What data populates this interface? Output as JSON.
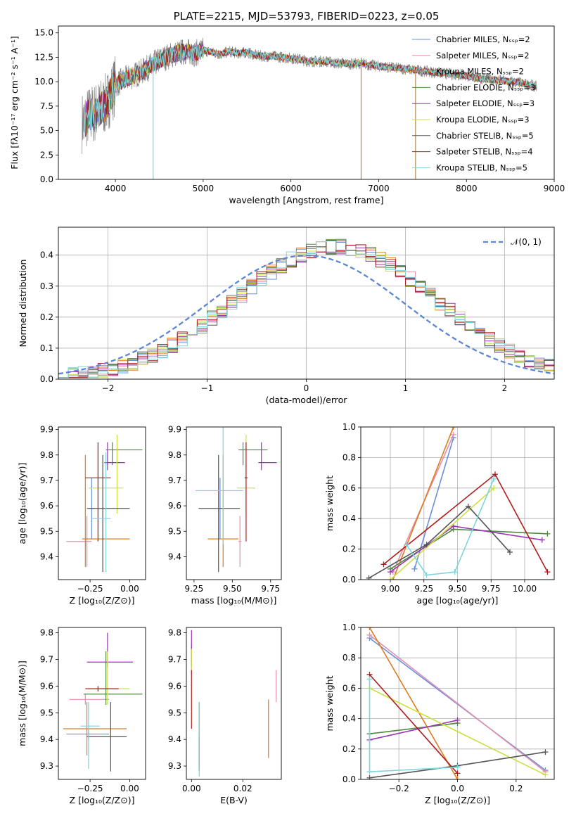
{
  "colors": [
    "#6a8fd8",
    "#e48fb0",
    "#e07b1f",
    "#4e8a3e",
    "#9b35b5",
    "#cde040",
    "#555555",
    "#b01b1b",
    "#7dd6dc"
  ],
  "chart_data": [
    {
      "id": "spectrum",
      "type": "line",
      "title": "PLATE=2215, MJD=53793, FIBERID=0223, z=0.05",
      "xlabel": "wavelength [Angstrom, rest frame]",
      "ylabel": "Flux [fλ10⁻¹⁷ erg cm⁻² s⁻¹ A⁻¹]",
      "xlim": [
        3350,
        9000
      ],
      "ylim": [
        0,
        15.7
      ],
      "xticks": [
        4000,
        5000,
        6000,
        7000,
        8000,
        9000
      ],
      "yticks": [
        0.0,
        2.5,
        5.0,
        7.5,
        10.0,
        12.5,
        15.0
      ],
      "grid": false,
      "legend_position": "right",
      "legend": [
        "Chabrier MILES, Nₛₛₚ=2",
        "Salpeter MILES, Nₛₛₚ=2",
        "Kroupa MILES, Nₛₛₚ=2",
        "Chabrier ELODIE, Nₛₛₚ=3",
        "Salpeter ELODIE, Nₛₛₚ=3",
        "Kroupa ELODIE, Nₛₛₚ=3",
        "Chabrier STELIB, Nₛₛₚ=5",
        "Salpeter STELIB, Nₛₛₚ=4",
        "Kroupa STELIB, Nₛₛₚ=5"
      ],
      "data_x": [
        3620,
        3700,
        3800,
        3900,
        4000,
        4100,
        4200,
        4300,
        4400,
        4500,
        4600,
        4700,
        4800,
        4900,
        5000,
        5100,
        5200,
        5300,
        5400,
        5500,
        5600,
        5700,
        5800,
        5900,
        6000,
        6100,
        6200,
        6300,
        6400,
        6500,
        6600,
        6700,
        6800,
        6900,
        7000,
        7100,
        7200,
        7300,
        7400,
        7500,
        7600,
        7700,
        7800,
        7900,
        8000,
        8100,
        8200,
        8300,
        8400,
        8500,
        8600,
        8700,
        8800
      ],
      "data_y": [
        5.8,
        6.5,
        7.0,
        7.8,
        9.7,
        10.2,
        10.6,
        11.0,
        11.6,
        12.2,
        12.6,
        12.9,
        13.1,
        12.9,
        13.2,
        13.0,
        12.8,
        13.1,
        12.9,
        13.0,
        12.7,
        12.6,
        12.6,
        12.5,
        12.4,
        12.3,
        12.1,
        12.1,
        12.1,
        11.9,
        11.9,
        11.8,
        11.9,
        11.7,
        11.6,
        11.5,
        11.4,
        11.3,
        11.2,
        11.1,
        11.0,
        10.9,
        10.8,
        10.7,
        10.6,
        10.4,
        10.3,
        10.2,
        10.1,
        10.0,
        9.9,
        9.7,
        9.5
      ],
      "dips": [
        [
          4430,
          0
        ],
        [
          6800,
          0
        ],
        [
          7420,
          0
        ]
      ]
    },
    {
      "id": "residuals",
      "type": "area",
      "xlabel": "(data-model)/error",
      "ylabel": "Normed distribution",
      "xlim": [
        -2.5,
        2.5
      ],
      "ylim": [
        0,
        0.49
      ],
      "xticks": [
        -2,
        -1,
        0,
        1,
        2
      ],
      "yticks": [
        0.0,
        0.1,
        0.2,
        0.3,
        0.4
      ],
      "grid": true,
      "legend_position": "top-right",
      "reference_label": "𝒩(0, 1)",
      "bins": [
        -2.5,
        2.5,
        50
      ]
    },
    {
      "id": "age-vs-Z",
      "type": "scatter",
      "xlabel": "Z [log₁₀(Z/Z⊙)]",
      "ylabel": "age  [log₁₀(age/yr)]",
      "xlim": [
        -0.45,
        0.1
      ],
      "ylim": [
        9.31,
        9.91
      ],
      "xticks": [
        -0.25,
        0.0
      ],
      "yticks": [
        9.4,
        9.5,
        9.6,
        9.7,
        9.8,
        9.9
      ],
      "points": [
        {
          "x": -0.24,
          "xerr": [
            0.02,
            0.02
          ],
          "y": 9.59,
          "yerr": [
            0.12,
            0.12
          ]
        },
        {
          "x": -0.27,
          "xerr": [
            0.13,
            0.03
          ],
          "y": 9.46,
          "yerr": [
            0.1,
            0.1
          ]
        },
        {
          "x": -0.28,
          "xerr": [
            0.02,
            0.28
          ],
          "y": 9.47,
          "yerr": [
            0.11,
            0.33
          ]
        },
        {
          "x": -0.11,
          "xerr": [
            0.04,
            0.19
          ],
          "y": 9.82,
          "yerr": [
            0.06,
            0.03
          ]
        },
        {
          "x": -0.14,
          "xerr": [
            0.02,
            0.11
          ],
          "y": 9.77,
          "yerr": [
            0.03,
            0.08
          ]
        },
        {
          "x": -0.08,
          "xerr": [
            0.18,
            0.04
          ],
          "y": 9.67,
          "yerr": [
            0.1,
            0.21
          ]
        },
        {
          "x": -0.17,
          "xerr": [
            0.1,
            0.17
          ],
          "y": 9.59,
          "yerr": [
            0.25,
            0.21
          ]
        },
        {
          "x": -0.2,
          "xerr": [
            0.08,
            0.08
          ],
          "y": 9.71,
          "yerr": [
            0.25,
            0.14
          ]
        },
        {
          "x": -0.15,
          "xerr": [
            0.09,
            0.03
          ],
          "y": 9.55,
          "yerr": [
            0.21,
            0.26
          ]
        }
      ]
    },
    {
      "id": "age-vs-mass",
      "type": "scatter",
      "xlabel": "mass [log₁₀(M/M⊙)]",
      "ylabel": "",
      "xlim": [
        9.2,
        9.82
      ],
      "ylim": [
        9.31,
        9.91
      ],
      "xticks": [
        9.25,
        9.5,
        9.75
      ],
      "yticks": [
        9.4,
        9.5,
        9.6,
        9.7,
        9.8,
        9.9
      ],
      "points": [
        {
          "x": 9.42,
          "xerr": [
            0.01,
            0.01
          ],
          "y": 9.59,
          "yerr": [
            0.12,
            0.12
          ]
        },
        {
          "x": 9.55,
          "xerr": [
            0.01,
            0.01
          ],
          "y": 9.46,
          "yerr": [
            0.1,
            0.1
          ]
        },
        {
          "x": 9.44,
          "xerr": [
            0.1,
            0.1
          ],
          "y": 9.47,
          "yerr": [
            0.11,
            0.33
          ]
        },
        {
          "x": 9.57,
          "xerr": [
            0.03,
            0.16
          ],
          "y": 9.82,
          "yerr": [
            0.06,
            0.03
          ]
        },
        {
          "x": 9.69,
          "xerr": [
            0.02,
            0.1
          ],
          "y": 9.77,
          "yerr": [
            0.03,
            0.08
          ]
        },
        {
          "x": 9.59,
          "xerr": [
            0.06,
            0.06
          ],
          "y": 9.67,
          "yerr": [
            0.1,
            0.21
          ]
        },
        {
          "x": 9.41,
          "xerr": [
            0.13,
            0.14
          ],
          "y": 9.59,
          "yerr": [
            0.25,
            0.21
          ]
        },
        {
          "x": 9.59,
          "xerr": [
            0.01,
            0.01
          ],
          "y": 9.71,
          "yerr": [
            0.25,
            0.14
          ]
        },
        {
          "x": 9.44,
          "xerr": [
            0.18,
            0.13
          ],
          "y": 9.66,
          "yerr": [
            0.21,
            0.26
          ]
        }
      ]
    },
    {
      "id": "mass-weight-vs-age",
      "type": "line",
      "xlabel": "age  [log₁₀(age/yr)]",
      "ylabel": "mass weight",
      "xlim": [
        8.78,
        10.22
      ],
      "ylim": [
        0,
        1
      ],
      "xticks": [
        9.0,
        9.25,
        9.5,
        9.75,
        10.0
      ],
      "yticks": [
        0.0,
        0.2,
        0.4,
        0.6,
        0.8,
        1.0
      ],
      "grid": true,
      "series": [
        {
          "x": [
            9.18,
            9.47
          ],
          "y": [
            0.07,
            0.93
          ]
        },
        {
          "x": [
            9.02,
            9.47
          ],
          "y": [
            0.05,
            0.95
          ]
        },
        {
          "x": [
            9.02,
            9.47
          ],
          "y": [
            0.0,
            1.0
          ]
        },
        {
          "x": [
            9.0,
            9.47,
            10.17
          ],
          "y": [
            0.07,
            0.33,
            0.3
          ]
        },
        {
          "x": [
            9.0,
            9.47,
            10.13
          ],
          "y": [
            0.05,
            0.35,
            0.26
          ]
        },
        {
          "x": [
            9.0,
            9.77
          ],
          "y": [
            0.0,
            0.6
          ]
        },
        {
          "x": [
            8.84,
            9.27,
            9.58,
            9.89
          ],
          "y": [
            0.01,
            0.23,
            0.48,
            0.18
          ]
        },
        {
          "x": [
            8.95,
            9.78,
            10.17
          ],
          "y": [
            0.1,
            0.69,
            0.05
          ]
        },
        {
          "x": [
            9.12,
            9.27,
            9.48,
            9.77
          ],
          "y": [
            0.23,
            0.03,
            0.05,
            0.66
          ]
        }
      ]
    },
    {
      "id": "mass-vs-Z",
      "type": "scatter",
      "xlabel": "Z [log₁₀(Z/Z⊙)]",
      "ylabel": "mass [log₁₀(M/M⊙)]",
      "xlim": [
        -0.45,
        0.1
      ],
      "ylim": [
        9.25,
        9.82
      ],
      "xticks": [
        -0.25,
        0.0
      ],
      "yticks": [
        9.3,
        9.4,
        9.5,
        9.6,
        9.7,
        9.8
      ],
      "points": [
        {
          "x": -0.26,
          "xerr": [
            0.14,
            0.13
          ],
          "y": 9.42,
          "yerr": [
            0.02,
            0.02
          ]
        },
        {
          "x": -0.28,
          "xerr": [
            0.1,
            0.15
          ],
          "y": 9.55,
          "yerr": [
            0.02,
            0.02
          ]
        },
        {
          "x": -0.27,
          "xerr": [
            0.15,
            0.25
          ],
          "y": 9.44,
          "yerr": [
            0.1,
            0.1
          ]
        },
        {
          "x": -0.15,
          "xerr": [
            0.14,
            0.23
          ],
          "y": 9.57,
          "yerr": [
            0.04,
            0.16
          ]
        },
        {
          "x": -0.14,
          "xerr": [
            0.13,
            0.16
          ],
          "y": 9.69,
          "yerr": [
            0.02,
            0.11
          ]
        },
        {
          "x": -0.14,
          "xerr": [
            0.12,
            0.14
          ],
          "y": 9.59,
          "yerr": [
            0.06,
            0.14
          ]
        },
        {
          "x": -0.12,
          "xerr": [
            0.15,
            0.1
          ],
          "y": 9.41,
          "yerr": [
            0.13,
            0.13
          ]
        },
        {
          "x": -0.2,
          "xerr": [
            0.08,
            0.13
          ],
          "y": 9.59,
          "yerr": [
            0.01,
            0.01
          ]
        },
        {
          "x": -0.26,
          "xerr": [
            0.05,
            0.07
          ],
          "y": 9.45,
          "yerr": [
            0.16,
            0.09
          ]
        }
      ]
    },
    {
      "id": "mass-vs-EBV",
      "type": "scatter",
      "xlabel": "E(B-V)",
      "ylabel": "",
      "xlim": [
        -0.002,
        0.035
      ],
      "ylim": [
        9.25,
        9.82
      ],
      "xticks": [
        0.0,
        0.02
      ],
      "yticks": [
        9.3,
        9.4,
        9.5,
        9.6,
        9.7,
        9.8
      ],
      "points": [
        {
          "x": 0.0,
          "y": 9.7,
          "yerr": [
            0.06,
            0.06
          ]
        },
        {
          "x": 0.033,
          "y": 9.6,
          "yerr": [
            0.06,
            0.06
          ]
        },
        {
          "x": 0.03,
          "y": 9.44,
          "yerr": [
            0.11,
            0.11
          ]
        },
        {
          "x": 0.003,
          "y": 9.35,
          "yerr": [
            0.06,
            0.06
          ]
        },
        {
          "x": 0.0,
          "y": 9.74,
          "yerr": [
            0.07,
            0.07
          ]
        },
        {
          "x": 0.0,
          "y": 9.7,
          "yerr": [
            0.04,
            0.04
          ]
        },
        {
          "x": 0.003,
          "y": 9.41,
          "yerr": [
            0.13,
            0.13
          ]
        },
        {
          "x": 0.0,
          "y": 9.55,
          "yerr": [
            0.11,
            0.11
          ]
        },
        {
          "x": 0.003,
          "y": 9.4,
          "yerr": [
            0.14,
            0.14
          ]
        }
      ]
    },
    {
      "id": "mass-weight-vs-Z",
      "type": "line",
      "xlabel": "Z [log₁₀(Z/Z⊙)]",
      "ylabel": "mass weight",
      "xlim": [
        -0.33,
        0.33
      ],
      "ylim": [
        0,
        1
      ],
      "xticks": [
        -0.2,
        0.0,
        0.2
      ],
      "yticks": [
        0.0,
        0.2,
        0.4,
        0.6,
        0.8,
        1.0
      ],
      "grid": true,
      "series": [
        {
          "x": [
            -0.3,
            0.3
          ],
          "y": [
            0.93,
            0.06
          ]
        },
        {
          "x": [
            -0.3,
            0.3
          ],
          "y": [
            0.95,
            0.05
          ]
        },
        {
          "x": [
            -0.3,
            0.0
          ],
          "y": [
            1.0,
            0.0
          ]
        },
        {
          "x": [
            -0.3,
            0.0
          ],
          "y": [
            0.3,
            0.37
          ]
        },
        {
          "x": [
            -0.3,
            0.0
          ],
          "y": [
            0.26,
            0.39
          ]
        },
        {
          "x": [
            -0.3,
            0.3
          ],
          "y": [
            0.6,
            0.03
          ]
        },
        {
          "x": [
            -0.3,
            0.0,
            0.3
          ],
          "y": [
            0.01,
            0.09,
            0.18
          ]
        },
        {
          "x": [
            -0.3,
            0.0
          ],
          "y": [
            0.69,
            0.04
          ]
        },
        {
          "x": [
            -0.3,
            -0.3,
            0.0
          ],
          "y": [
            0.66,
            0.05,
            0.08
          ]
        }
      ]
    }
  ]
}
